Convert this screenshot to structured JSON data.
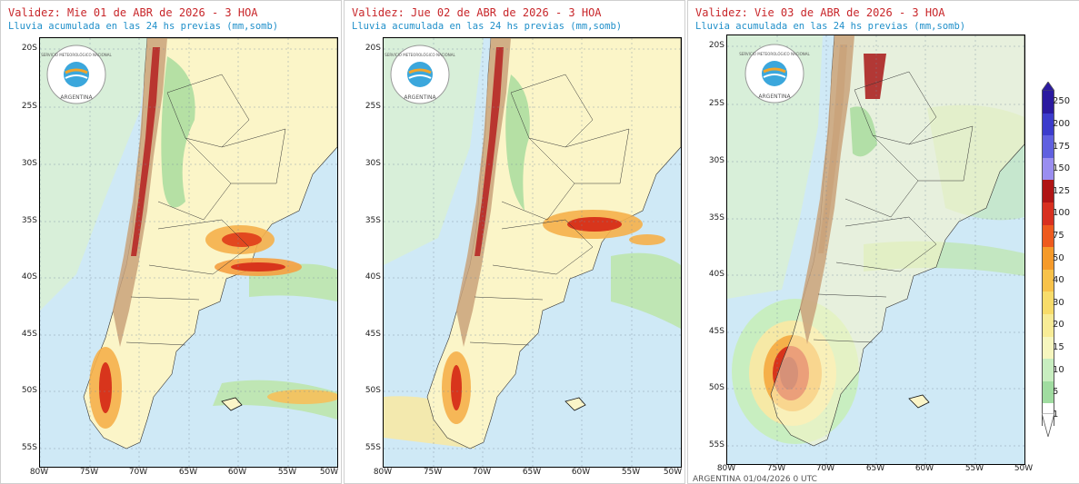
{
  "panels": [
    {
      "title": "Validez: Mie 01 de ABR de 2026 - 3 HOA",
      "subtitle": "Lluvia acumulada en las 24 hs previas (mm,somb)"
    },
    {
      "title": "Validez: Jue 02 de ABR de 2026 - 3 HOA",
      "subtitle": "Lluvia acumulada en las 24 hs previas (mm,somb)"
    },
    {
      "title": "Validez: Vie 03 de ABR de 2026 - 3 HOA",
      "subtitle": "Lluvia acumulada en las 24 hs previas (mm,somb)"
    }
  ],
  "logo": {
    "text_top": "SERVICIO METEOROLÓGICO NACIONAL",
    "text_bottom": "ARGENTINA"
  },
  "lat_labels": [
    "20S",
    "25S",
    "30S",
    "35S",
    "40S",
    "45S",
    "50S",
    "55S"
  ],
  "lon_labels": [
    "80W",
    "75W",
    "70W",
    "65W",
    "60W",
    "55W",
    "50W"
  ],
  "colorbar": {
    "labels": [
      "250",
      "200",
      "175",
      "150",
      "125",
      "100",
      "75",
      "50",
      "40",
      "30",
      "20",
      "15",
      "10",
      "5",
      "1"
    ],
    "colors": [
      "#2b1aa0",
      "#3c3ccc",
      "#6060e0",
      "#9a8ef0",
      "#b01515",
      "#d83020",
      "#ee5a1e",
      "#f59a2a",
      "#f8c24a",
      "#f8dc6a",
      "#f8ec96",
      "#f6f6be",
      "#c8eec0",
      "#a0dca0",
      "#ffffff"
    ]
  },
  "footer": "ARGENTINA 01/04/2026 0 UTC"
}
